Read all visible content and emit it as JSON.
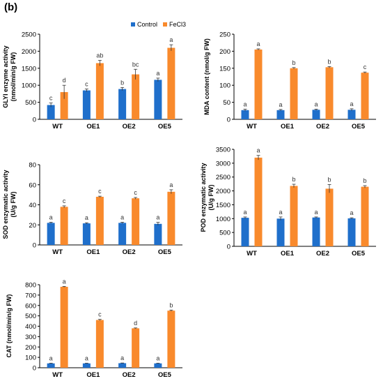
{
  "panel_label": "(b)",
  "legend": [
    {
      "name": "Control",
      "color": "#1F6FCB"
    },
    {
      "name": "FeCl3",
      "color": "#F98A2C"
    }
  ],
  "colors": {
    "control": "#1F6FCB",
    "fecl3": "#F98A2C"
  },
  "chart_data": [
    {
      "type": "bar",
      "ylabel": "GLYI enzyme activity (nmol/min/g FW)",
      "categories": [
        "WT",
        "OE1",
        "OE2",
        "OE5"
      ],
      "ylim": [
        0,
        2500
      ],
      "yticks": [
        0,
        500,
        1000,
        1500,
        2000,
        2500
      ],
      "series": [
        {
          "name": "Control",
          "values": [
            420,
            850,
            890,
            1160
          ],
          "errors": [
            60,
            40,
            45,
            50
          ],
          "labels": [
            "c",
            "c",
            "b",
            "a"
          ]
        },
        {
          "name": "FeCl3",
          "values": [
            800,
            1650,
            1320,
            2100
          ],
          "errors": [
            200,
            80,
            150,
            90
          ],
          "labels": [
            "d",
            "ab",
            "bc",
            "a"
          ]
        }
      ]
    },
    {
      "type": "bar",
      "ylabel": "MDA content (nmol/g FW)",
      "categories": [
        "WT",
        "OE1",
        "OE2",
        "OE5"
      ],
      "ylim": [
        0,
        250
      ],
      "yticks": [
        0,
        50,
        100,
        150,
        200,
        250
      ],
      "series": [
        {
          "name": "Control",
          "values": [
            27,
            27,
            28,
            28
          ],
          "errors": [
            3,
            2,
            2,
            3
          ],
          "labels": [
            "a",
            "a",
            "a",
            "a"
          ]
        },
        {
          "name": "FeCl3",
          "values": [
            205,
            150,
            153,
            137
          ],
          "errors": [
            2,
            2,
            2,
            2
          ],
          "labels": [
            "a",
            "b",
            "b",
            "c"
          ]
        }
      ]
    },
    {
      "type": "bar",
      "ylabel": "SOD enzymatic activity (U/g FW)",
      "categories": [
        "WT",
        "OE1",
        "OE2",
        "OE5"
      ],
      "ylim": [
        0,
        80
      ],
      "yticks": [
        0,
        20,
        40,
        60,
        80
      ],
      "series": [
        {
          "name": "Control",
          "values": [
            22,
            21.5,
            22,
            21
          ],
          "errors": [
            0.6,
            0.6,
            0.6,
            1.5
          ],
          "labels": [
            "a",
            "a",
            "a",
            "a"
          ]
        },
        {
          "name": "FeCl3",
          "values": [
            38,
            48,
            46.5,
            53
          ],
          "errors": [
            1,
            0.6,
            0.8,
            2
          ],
          "labels": [
            "c",
            "c",
            "c",
            "a"
          ]
        }
      ]
    },
    {
      "type": "bar",
      "ylabel": "POD enzymatic activity (U/g FW)",
      "categories": [
        "WT",
        "OE1",
        "OE2",
        "OE5"
      ],
      "ylim": [
        0,
        3500
      ],
      "yticks": [
        0,
        500,
        1000,
        1500,
        2000,
        2500,
        3000,
        3500
      ],
      "series": [
        {
          "name": "Control",
          "values": [
            1030,
            1000,
            1040,
            1010
          ],
          "errors": [
            30,
            60,
            20,
            20
          ],
          "labels": [
            "a",
            "a",
            "a",
            "a"
          ]
        },
        {
          "name": "FeCl3",
          "values": [
            3200,
            2180,
            2080,
            2150
          ],
          "errors": [
            80,
            60,
            150,
            40
          ],
          "labels": [
            "a",
            "b",
            "b",
            "b"
          ]
        }
      ]
    },
    {
      "type": "bar",
      "ylabel": "CAT (nmol/min/g FW)",
      "categories": [
        "WT",
        "OE1",
        "OE2",
        "OE5"
      ],
      "ylim": [
        0,
        800
      ],
      "yticks": [
        0,
        100,
        200,
        300,
        400,
        500,
        600,
        700,
        800
      ],
      "series": [
        {
          "name": "Control",
          "values": [
            42,
            42,
            44,
            42
          ],
          "errors": [
            2,
            2,
            2,
            2
          ],
          "labels": [
            "a",
            "a",
            "a",
            "a"
          ]
        },
        {
          "name": "FeCl3",
          "values": [
            780,
            460,
            380,
            550
          ],
          "errors": [
            4,
            6,
            4,
            6
          ],
          "labels": [
            "a",
            "c",
            "d",
            "b"
          ]
        }
      ]
    }
  ]
}
